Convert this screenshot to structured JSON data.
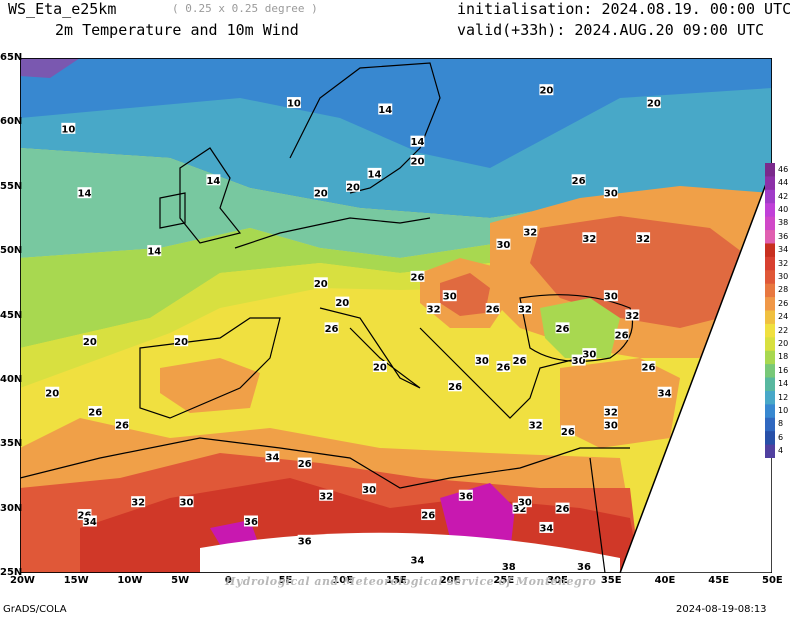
{
  "header": {
    "model": "WS_Eta_e25km",
    "resolution": "( 0.25 x 0.25 degree )",
    "field": "2m Temperature and 10m Wind",
    "init": "initialisation: 2024.08.19. 00:00 UTC",
    "valid": "valid(+33h): 2024.AUG.20 09:00 UTC"
  },
  "footer": {
    "left": "GrADS/COLA",
    "right": "2024-08-19-08:13"
  },
  "watermark": "Hydrological and Meteorological service of Montenegro",
  "axes": {
    "lon_labels": [
      "20W",
      "15W",
      "10W",
      "5W",
      "0",
      "5E",
      "10E",
      "15E",
      "20E",
      "25E",
      "30E",
      "35E",
      "40E",
      "45E",
      "50E"
    ],
    "lat_labels": [
      "65N",
      "60N",
      "55N",
      "50N",
      "45N",
      "40N",
      "35N",
      "30N",
      "25N"
    ]
  },
  "colorbar": {
    "levels": [
      "46",
      "44",
      "42",
      "40",
      "38",
      "36",
      "34",
      "32",
      "30",
      "28",
      "26",
      "24",
      "22",
      "20",
      "18",
      "16",
      "14",
      "12",
      "10",
      "8",
      "6",
      "4"
    ],
    "colors": [
      "#7a2a8c",
      "#8c30a8",
      "#a03cc8",
      "#c040d8",
      "#d048c8",
      "#e060b0",
      "#c83020",
      "#d84030",
      "#e05838",
      "#e87840",
      "#f09848",
      "#f0c040",
      "#f0e040",
      "#d8e040",
      "#a8d850",
      "#78c878",
      "#58b8a0",
      "#48a8c8",
      "#3888d0",
      "#3068c0",
      "#2850a8",
      "#5040a0"
    ]
  },
  "contour_labels": [
    {
      "t": "10",
      "lon": -15.5,
      "lat": 59.5
    },
    {
      "t": "10",
      "lon": 5.5,
      "lat": 61.5
    },
    {
      "t": "14",
      "lon": 14,
      "lat": 61
    },
    {
      "t": "14",
      "lon": -14,
      "lat": 54.5
    },
    {
      "t": "14",
      "lon": -7.5,
      "lat": 50
    },
    {
      "t": "14",
      "lon": -2,
      "lat": 55.5
    },
    {
      "t": "14",
      "lon": 13,
      "lat": 56
    },
    {
      "t": "14",
      "lon": 17,
      "lat": 58.5
    },
    {
      "t": "20",
      "lon": 29,
      "lat": 62.5
    },
    {
      "t": "20",
      "lon": 17,
      "lat": 57
    },
    {
      "t": "20",
      "lon": 8,
      "lat": 54.5
    },
    {
      "t": "20",
      "lon": 11,
      "lat": 55
    },
    {
      "t": "20",
      "lon": 39,
      "lat": 61.5
    },
    {
      "t": "26",
      "lon": 32,
      "lat": 55.5
    },
    {
      "t": "30",
      "lon": 35,
      "lat": 54.5
    },
    {
      "t": "32",
      "lon": 27.5,
      "lat": 51.5
    },
    {
      "t": "32",
      "lon": 33,
      "lat": 51
    },
    {
      "t": "32",
      "lon": 38,
      "lat": 51
    },
    {
      "t": "30",
      "lon": 25,
      "lat": 50.5
    },
    {
      "t": "26",
      "lon": 17,
      "lat": 48
    },
    {
      "t": "30",
      "lon": 20,
      "lat": 46.5
    },
    {
      "t": "32",
      "lon": 18.5,
      "lat": 45.5
    },
    {
      "t": "26",
      "lon": 24,
      "lat": 45.5
    },
    {
      "t": "32",
      "lon": 27,
      "lat": 45.5
    },
    {
      "t": "30",
      "lon": 35,
      "lat": 46.5
    },
    {
      "t": "32",
      "lon": 37,
      "lat": 45
    },
    {
      "t": "26",
      "lon": 30.5,
      "lat": 44
    },
    {
      "t": "26",
      "lon": 36,
      "lat": 43.5
    },
    {
      "t": "20",
      "lon": 8,
      "lat": 47.5
    },
    {
      "t": "20",
      "lon": 10,
      "lat": 46
    },
    {
      "t": "26",
      "lon": 9,
      "lat": 44
    },
    {
      "t": "30",
      "lon": 23,
      "lat": 41.5
    },
    {
      "t": "20",
      "lon": 13.5,
      "lat": 41
    },
    {
      "t": "26",
      "lon": 25,
      "lat": 41
    },
    {
      "t": "26",
      "lon": 26.5,
      "lat": 41.5
    },
    {
      "t": "30",
      "lon": 32,
      "lat": 41.5
    },
    {
      "t": "26",
      "lon": 20.5,
      "lat": 39.5
    },
    {
      "t": "30",
      "lon": 33,
      "lat": 42
    },
    {
      "t": "26",
      "lon": 38.5,
      "lat": 41
    },
    {
      "t": "34",
      "lon": 40,
      "lat": 39
    },
    {
      "t": "32",
      "lon": 35,
      "lat": 37.5
    },
    {
      "t": "30",
      "lon": 35,
      "lat": 36.5
    },
    {
      "t": "26",
      "lon": 31,
      "lat": 36
    },
    {
      "t": "32",
      "lon": 28,
      "lat": 36.5
    },
    {
      "t": "20",
      "lon": -13.5,
      "lat": 43
    },
    {
      "t": "20",
      "lon": -5,
      "lat": 43
    },
    {
      "t": "20",
      "lon": -17,
      "lat": 39
    },
    {
      "t": "26",
      "lon": -13,
      "lat": 37.5
    },
    {
      "t": "26",
      "lon": -10.5,
      "lat": 36.5
    },
    {
      "t": "34",
      "lon": 3.5,
      "lat": 34
    },
    {
      "t": "26",
      "lon": 6.5,
      "lat": 33.5
    },
    {
      "t": "30",
      "lon": 12.5,
      "lat": 31.5
    },
    {
      "t": "32",
      "lon": 8.5,
      "lat": 31
    },
    {
      "t": "36",
      "lon": 21.5,
      "lat": 31
    },
    {
      "t": "32",
      "lon": 26.5,
      "lat": 30
    },
    {
      "t": "30",
      "lon": 27,
      "lat": 30.5
    },
    {
      "t": "26",
      "lon": 30.5,
      "lat": 30
    },
    {
      "t": "26",
      "lon": 18,
      "lat": 29.5
    },
    {
      "t": "32",
      "lon": -9,
      "lat": 30.5
    },
    {
      "t": "30",
      "lon": -4.5,
      "lat": 30.5
    },
    {
      "t": "26",
      "lon": -14,
      "lat": 29.5
    },
    {
      "t": "34",
      "lon": -13.5,
      "lat": 29
    },
    {
      "t": "36",
      "lon": 1.5,
      "lat": 29
    },
    {
      "t": "36",
      "lon": 6.5,
      "lat": 27.5
    },
    {
      "t": "34",
      "lon": 29,
      "lat": 28.5
    },
    {
      "t": "34",
      "lon": 17,
      "lat": 26
    },
    {
      "t": "38",
      "lon": 25.5,
      "lat": 25.5
    },
    {
      "t": "36",
      "lon": 32.5,
      "lat": 25.5
    }
  ]
}
